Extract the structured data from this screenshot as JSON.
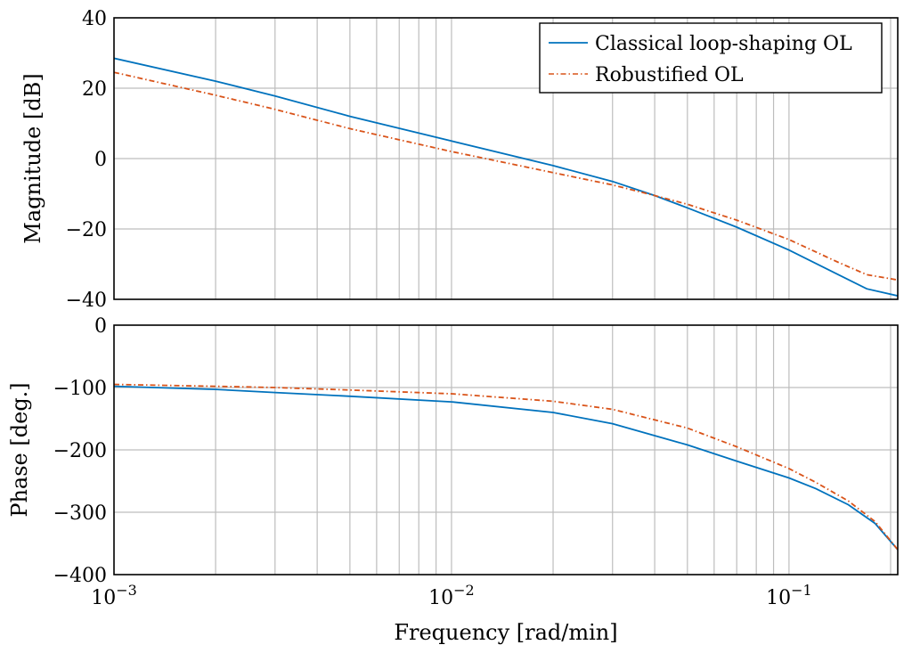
{
  "chart_data": [
    {
      "type": "line",
      "panel": "magnitude",
      "xscale": "log",
      "xlim": [
        0.001,
        0.21
      ],
      "ylim": [
        -40,
        40
      ],
      "yticks": [
        40,
        20,
        0,
        -20,
        -40
      ],
      "ytick_labels": [
        "40",
        "20",
        "0",
        "−20",
        "−40"
      ],
      "ylabel": "Magnitude [dB]",
      "grid": true,
      "legend": "top-right",
      "series": [
        {
          "name": "Classical loop-shaping OL",
          "color": "#0072bd",
          "style": "solid",
          "x": [
            0.001,
            0.002,
            0.003,
            0.005,
            0.01,
            0.02,
            0.03,
            0.04,
            0.05,
            0.07,
            0.1,
            0.14,
            0.17,
            0.21
          ],
          "y": [
            28.5,
            22.0,
            17.8,
            12.0,
            5.0,
            -2.0,
            -6.5,
            -10.5,
            -14.0,
            -19.5,
            -26.0,
            -33.0,
            -37.0,
            -39.0
          ]
        },
        {
          "name": "Robustified OL",
          "color": "#d95319",
          "style": "dash-dot",
          "x": [
            0.001,
            0.002,
            0.003,
            0.005,
            0.01,
            0.02,
            0.03,
            0.04,
            0.05,
            0.07,
            0.1,
            0.14,
            0.17,
            0.21
          ],
          "y": [
            24.5,
            18.0,
            14.0,
            8.5,
            2.0,
            -4.0,
            -7.5,
            -10.5,
            -13.0,
            -17.5,
            -23.0,
            -29.5,
            -33.0,
            -34.5
          ]
        }
      ]
    },
    {
      "type": "line",
      "panel": "phase",
      "xscale": "log",
      "xlim": [
        0.001,
        0.21
      ],
      "ylim": [
        -400,
        0
      ],
      "yticks": [
        0,
        -100,
        -200,
        -300,
        -400
      ],
      "ytick_labels": [
        "0",
        "−100",
        "−200",
        "−300",
        "−400"
      ],
      "ylabel": "Phase [deg.]",
      "xlabel": "Frequency [rad/min]",
      "xticks": [
        0.001,
        0.01,
        0.1
      ],
      "xtick_labels": [
        [
          "10",
          "−3"
        ],
        [
          "10",
          "−2"
        ],
        [
          "10",
          "−1"
        ]
      ],
      "grid": true,
      "series": [
        {
          "name": "Classical loop-shaping OL",
          "color": "#0072bd",
          "style": "solid",
          "x": [
            0.001,
            0.002,
            0.003,
            0.005,
            0.01,
            0.02,
            0.03,
            0.05,
            0.07,
            0.1,
            0.12,
            0.15,
            0.18,
            0.21
          ],
          "y": [
            -98,
            -103,
            -108,
            -114,
            -123,
            -140,
            -158,
            -192,
            -218,
            -245,
            -262,
            -288,
            -318,
            -360
          ]
        },
        {
          "name": "Robustified OL",
          "color": "#d95319",
          "style": "dash-dot",
          "x": [
            0.001,
            0.002,
            0.003,
            0.005,
            0.01,
            0.02,
            0.03,
            0.05,
            0.07,
            0.1,
            0.12,
            0.15,
            0.18,
            0.21
          ],
          "y": [
            -95,
            -98,
            -100,
            -104,
            -110,
            -122,
            -135,
            -165,
            -195,
            -230,
            -252,
            -282,
            -315,
            -360
          ]
        }
      ]
    }
  ],
  "legend": {
    "entries": [
      "Classical loop-shaping OL",
      "Robustified OL"
    ]
  }
}
